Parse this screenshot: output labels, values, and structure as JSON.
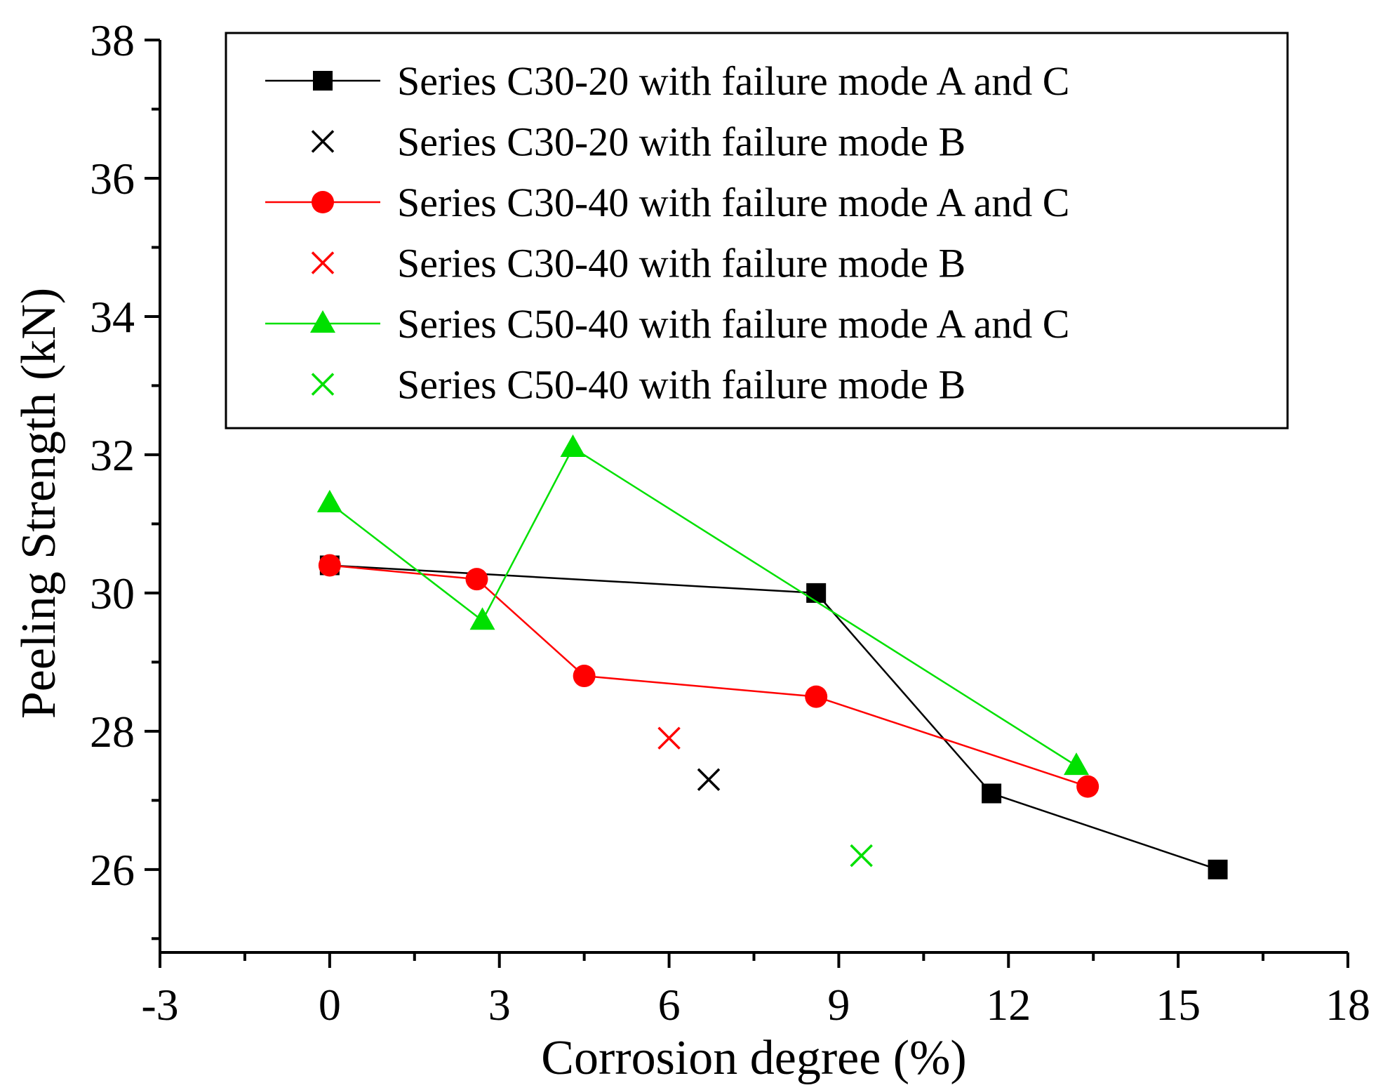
{
  "chart_data": {
    "type": "line",
    "title": "",
    "xlabel": "Corrosion degree (%)",
    "ylabel": "Peeling Strength (kN)",
    "xlim": [
      -3,
      18
    ],
    "ylim": [
      24.8,
      38
    ],
    "xticks": [
      -3,
      0,
      3,
      6,
      9,
      12,
      15,
      18
    ],
    "yticks": [
      26,
      28,
      30,
      32,
      34,
      36,
      38
    ],
    "grid": false,
    "legend_position": "top-right",
    "series": [
      {
        "name": "Series C30-20 with failure mode A and C",
        "color": "#000000",
        "marker": "square",
        "line": true,
        "x": [
          0,
          8.6,
          11.7,
          15.7
        ],
        "y": [
          30.4,
          30.0,
          27.1,
          26.0
        ]
      },
      {
        "name": "Series C30-20 with failure mode B",
        "color": "#000000",
        "marker": "x",
        "line": false,
        "x": [
          6.7
        ],
        "y": [
          27.3
        ]
      },
      {
        "name": "Series C30-40 with failure mode A and C",
        "color": "#ff0000",
        "marker": "circle",
        "line": true,
        "x": [
          0,
          2.6,
          4.5,
          8.6,
          13.4
        ],
        "y": [
          30.4,
          30.2,
          28.8,
          28.5,
          27.2
        ]
      },
      {
        "name": "Series C30-40 with failure mode B",
        "color": "#ff0000",
        "marker": "x",
        "line": false,
        "x": [
          6.0
        ],
        "y": [
          27.9
        ]
      },
      {
        "name": "Series C50-40 with failure mode A and C",
        "color": "#00e000",
        "marker": "triangle",
        "line": true,
        "x": [
          0,
          2.7,
          4.3,
          13.2
        ],
        "y": [
          31.3,
          29.6,
          32.1,
          27.5
        ]
      },
      {
        "name": "Series C50-40 with failure mode B",
        "color": "#00e000",
        "marker": "x",
        "line": false,
        "x": [
          9.4
        ],
        "y": [
          26.2
        ]
      }
    ]
  }
}
